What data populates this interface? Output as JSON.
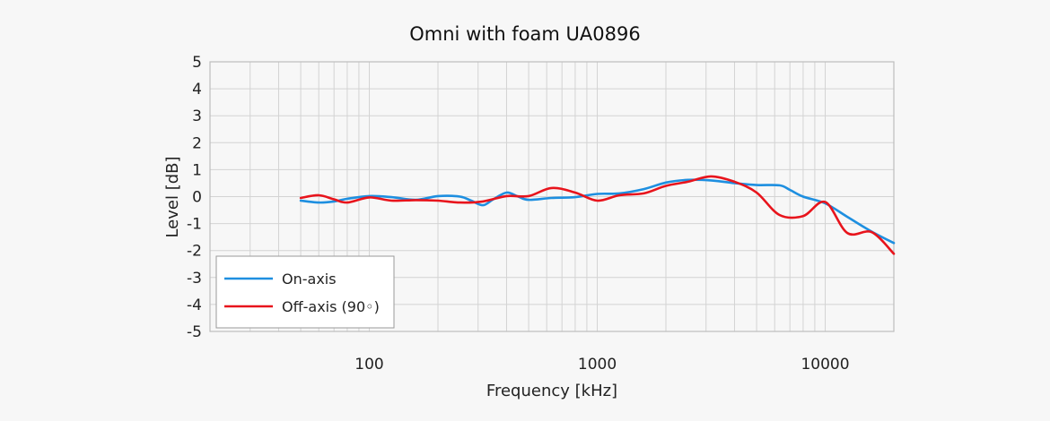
{
  "chart_data": {
    "type": "line",
    "title": "Omni with foam UA0896",
    "xlabel": "Frequency [kHz]",
    "ylabel": "Level [dB]",
    "x_scale": "log",
    "xlim": [
      20,
      20000
    ],
    "ylim": [
      -5,
      5
    ],
    "x_tick_labels": [
      "100",
      "1000",
      "10000"
    ],
    "y_tick_labels": [
      "5",
      "4",
      "3",
      "2",
      "1",
      "0",
      "-1",
      "-2",
      "-3",
      "-4",
      "-5"
    ],
    "grid": true,
    "legend_position": "bottom-left",
    "series": [
      {
        "name": "On-axis",
        "color": "#1e8fe0",
        "points": [
          [
            50,
            -0.15
          ],
          [
            60,
            -0.22
          ],
          [
            70,
            -0.18
          ],
          [
            80,
            -0.08
          ],
          [
            100,
            0.02
          ],
          [
            125,
            -0.02
          ],
          [
            160,
            -0.12
          ],
          [
            200,
            0.02
          ],
          [
            250,
            0.0
          ],
          [
            280,
            -0.15
          ],
          [
            315,
            -0.32
          ],
          [
            350,
            -0.1
          ],
          [
            400,
            0.15
          ],
          [
            450,
            0.0
          ],
          [
            500,
            -0.12
          ],
          [
            630,
            -0.05
          ],
          [
            800,
            -0.02
          ],
          [
            1000,
            0.1
          ],
          [
            1250,
            0.12
          ],
          [
            1600,
            0.28
          ],
          [
            2000,
            0.52
          ],
          [
            2500,
            0.62
          ],
          [
            3150,
            0.6
          ],
          [
            4000,
            0.5
          ],
          [
            5000,
            0.43
          ],
          [
            6300,
            0.42
          ],
          [
            7000,
            0.25
          ],
          [
            8000,
            0.0
          ],
          [
            10000,
            -0.25
          ],
          [
            12500,
            -0.75
          ],
          [
            16000,
            -1.3
          ],
          [
            20000,
            -1.72
          ]
        ]
      },
      {
        "name": "Off-axis (90◦)",
        "color": "#e8141c",
        "points": [
          [
            50,
            -0.05
          ],
          [
            60,
            0.05
          ],
          [
            70,
            -0.1
          ],
          [
            80,
            -0.22
          ],
          [
            100,
            -0.03
          ],
          [
            125,
            -0.15
          ],
          [
            160,
            -0.13
          ],
          [
            200,
            -0.15
          ],
          [
            250,
            -0.22
          ],
          [
            315,
            -0.18
          ],
          [
            400,
            0.02
          ],
          [
            500,
            0.02
          ],
          [
            630,
            0.32
          ],
          [
            800,
            0.15
          ],
          [
            1000,
            -0.15
          ],
          [
            1250,
            0.05
          ],
          [
            1600,
            0.12
          ],
          [
            2000,
            0.4
          ],
          [
            2500,
            0.55
          ],
          [
            3150,
            0.75
          ],
          [
            4000,
            0.55
          ],
          [
            5000,
            0.15
          ],
          [
            6300,
            -0.68
          ],
          [
            8000,
            -0.72
          ],
          [
            10000,
            -0.2
          ],
          [
            12500,
            -1.35
          ],
          [
            16000,
            -1.32
          ],
          [
            20000,
            -2.12
          ]
        ]
      }
    ]
  }
}
